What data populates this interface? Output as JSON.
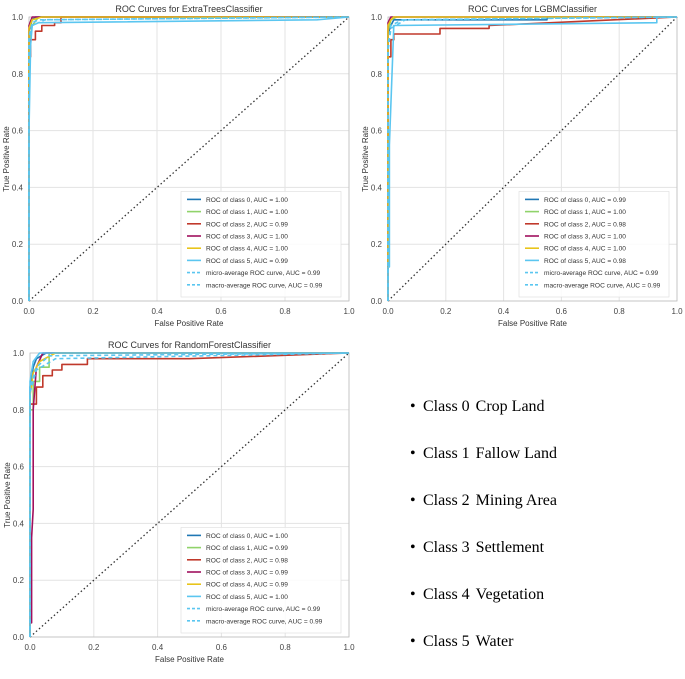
{
  "chart_data": [
    {
      "type": "line",
      "title": "ROC Curves for ExtraTreesClassifier",
      "xlabel": "False Positive Rate",
      "ylabel": "True Positive Rate",
      "xlim": [
        0,
        1
      ],
      "ylim": [
        0,
        1
      ],
      "xticks": [
        "0.0",
        "0.2",
        "0.4",
        "0.6",
        "0.8",
        "1.0"
      ],
      "yticks": [
        "0.0",
        "0.2",
        "0.4",
        "0.6",
        "0.8",
        "1.0"
      ],
      "grid": true,
      "legend_position": "lower-right",
      "series": [
        {
          "name": "ROC of class 0, AUC = 1.00",
          "color": "#1f77b4",
          "dash": false,
          "x": [
            0,
            0,
            0.01,
            0.02,
            1
          ],
          "y": [
            0,
            0.95,
            0.99,
            1.0,
            1.0
          ]
        },
        {
          "name": "ROC of class 1, AUC = 1.00",
          "color": "#90d36a",
          "dash": false,
          "x": [
            0,
            0,
            0.01,
            0.03,
            1
          ],
          "y": [
            0,
            0.9,
            0.97,
            1.0,
            1.0
          ]
        },
        {
          "name": "ROC of class 2, AUC = 0.99",
          "color": "#c0392b",
          "dash": false,
          "x": [
            0,
            0,
            0.005,
            0.005,
            0.02,
            0.02,
            0.04,
            0.04,
            0.08,
            0.08,
            0.1,
            0.1,
            1
          ],
          "y": [
            0,
            0.86,
            0.86,
            0.92,
            0.92,
            0.95,
            0.95,
            0.97,
            0.97,
            0.98,
            0.98,
            1.0,
            1.0
          ]
        },
        {
          "name": "ROC of class 3, AUC = 1.00",
          "color": "#a0105e",
          "dash": false,
          "x": [
            0,
            0,
            0.01,
            1
          ],
          "y": [
            0,
            0.97,
            1.0,
            1.0
          ]
        },
        {
          "name": "ROC of class 4, AUC = 1.00",
          "color": "#e8c41a",
          "dash": false,
          "x": [
            0,
            0,
            0.01,
            0.04,
            1
          ],
          "y": [
            0,
            0.96,
            0.99,
            1.0,
            1.0
          ]
        },
        {
          "name": "ROC of class 5, AUC = 0.99",
          "color": "#5bc6f0",
          "dash": false,
          "x": [
            0,
            0,
            0.005,
            0.01,
            0.03,
            0.9,
            1
          ],
          "y": [
            0,
            0.6,
            0.9,
            0.97,
            0.98,
            0.99,
            1.0
          ]
        },
        {
          "name": "micro-average ROC curve, AUC = 0.99",
          "color": "#5bc6f0",
          "dash": true,
          "x": [
            0,
            0,
            0.01,
            0.03,
            1
          ],
          "y": [
            0,
            0.93,
            0.98,
            0.99,
            1.0
          ]
        },
        {
          "name": "macro-average ROC curve, AUC = 0.99",
          "color": "#5bc6f0",
          "dash": true,
          "x": [
            0,
            0,
            0.01,
            0.05,
            1
          ],
          "y": [
            0,
            0.92,
            0.97,
            0.99,
            1.0
          ]
        }
      ]
    },
    {
      "type": "line",
      "title": "ROC Curves for LGBMClassifier",
      "xlabel": "False Positive Rate",
      "ylabel": "True Positive Rate",
      "xlim": [
        0,
        1
      ],
      "ylim": [
        0,
        1
      ],
      "xticks": [
        "0.0",
        "0.2",
        "0.4",
        "0.6",
        "0.8",
        "1.0"
      ],
      "yticks": [
        "0.0",
        "0.2",
        "0.4",
        "0.6",
        "0.8",
        "1.0"
      ],
      "grid": true,
      "legend_position": "lower-right",
      "series": [
        {
          "name": "ROC of class 0, AUC = 0.99",
          "color": "#1f77b4",
          "dash": false,
          "x": [
            0,
            0,
            0.01,
            0.02,
            0.55,
            0.55,
            1
          ],
          "y": [
            0,
            0.94,
            0.97,
            0.99,
            0.99,
            1.0,
            1.0
          ]
        },
        {
          "name": "ROC of class 1, AUC = 1.00",
          "color": "#90d36a",
          "dash": false,
          "x": [
            0,
            0,
            0.01,
            0.03,
            1
          ],
          "y": [
            0,
            0.95,
            0.99,
            1.0,
            1.0
          ]
        },
        {
          "name": "ROC of class 2, AUC = 0.98",
          "color": "#c0392b",
          "dash": false,
          "x": [
            0,
            0,
            0.01,
            0.01,
            0.02,
            0.02,
            0.18,
            0.18,
            0.35,
            0.35,
            1
          ],
          "y": [
            0,
            0.86,
            0.86,
            0.92,
            0.92,
            0.94,
            0.94,
            0.96,
            0.96,
            0.97,
            1.0
          ]
        },
        {
          "name": "ROC of class 3, AUC = 1.00",
          "color": "#a0105e",
          "dash": false,
          "x": [
            0,
            0,
            0.01,
            1
          ],
          "y": [
            0,
            0.98,
            1.0,
            1.0
          ]
        },
        {
          "name": "ROC of class 4, AUC = 1.00",
          "color": "#e8c41a",
          "dash": false,
          "x": [
            0,
            0,
            0.01,
            0.02,
            1
          ],
          "y": [
            0,
            0.97,
            0.99,
            1.0,
            1.0
          ]
        },
        {
          "name": "ROC of class 5, AUC = 0.98",
          "color": "#5bc6f0",
          "dash": false,
          "x": [
            0,
            0,
            0.005,
            0.005,
            0.02,
            0.93,
            0.93,
            1
          ],
          "y": [
            0,
            0.12,
            0.12,
            0.55,
            0.97,
            0.98,
            1.0,
            1.0
          ]
        },
        {
          "name": "micro-average ROC curve, AUC = 0.99",
          "color": "#5bc6f0",
          "dash": true,
          "x": [
            0,
            0,
            0.01,
            0.05,
            1
          ],
          "y": [
            0,
            0.9,
            0.97,
            0.99,
            1.0
          ]
        },
        {
          "name": "macro-average ROC curve, AUC = 0.99",
          "color": "#5bc6f0",
          "dash": true,
          "x": [
            0,
            0,
            0.01,
            0.06,
            1
          ],
          "y": [
            0,
            0.88,
            0.96,
            0.99,
            1.0
          ]
        }
      ]
    },
    {
      "type": "line",
      "title": "ROC Curves for RandomForestClassifier",
      "xlabel": "False Positive Rate",
      "ylabel": "True Positive Rate",
      "xlim": [
        0,
        1
      ],
      "ylim": [
        0,
        1
      ],
      "xticks": [
        "0.0",
        "0.2",
        "0.4",
        "0.6",
        "0.8",
        "1.0"
      ],
      "yticks": [
        "0.0",
        "0.2",
        "0.4",
        "0.6",
        "0.8",
        "1.0"
      ],
      "grid": true,
      "legend_position": "lower-right",
      "series": [
        {
          "name": "ROC of class 0, AUC = 1.00",
          "color": "#1f77b4",
          "dash": false,
          "x": [
            0,
            0,
            0.01,
            0.02,
            0.05,
            1
          ],
          "y": [
            0,
            0.88,
            0.95,
            0.98,
            1.0,
            1.0
          ]
        },
        {
          "name": "ROC of class 1, AUC = 0.99",
          "color": "#90d36a",
          "dash": false,
          "x": [
            0,
            0,
            0.01,
            0.01,
            0.03,
            0.03,
            0.06,
            0.06,
            1
          ],
          "y": [
            0,
            0.8,
            0.8,
            0.9,
            0.9,
            0.95,
            0.95,
            1.0,
            1.0
          ]
        },
        {
          "name": "ROC of class 2, AUC = 0.98",
          "color": "#c0392b",
          "dash": false,
          "x": [
            0,
            0,
            0.02,
            0.02,
            0.04,
            0.04,
            0.07,
            0.07,
            0.1,
            0.1,
            0.18,
            0.18,
            0.5,
            1
          ],
          "y": [
            0,
            0.82,
            0.82,
            0.88,
            0.88,
            0.92,
            0.92,
            0.94,
            0.94,
            0.96,
            0.96,
            0.98,
            0.98,
            1.0
          ]
        },
        {
          "name": "ROC of class 3, AUC = 0.99",
          "color": "#a0105e",
          "dash": false,
          "x": [
            0,
            0,
            0.005,
            0.005,
            0.01,
            0.01,
            0.02,
            0.04,
            1
          ],
          "y": [
            0,
            0.05,
            0.05,
            0.35,
            0.45,
            0.8,
            0.95,
            1.0,
            1.0
          ]
        },
        {
          "name": "ROC of class 4, AUC = 0.99",
          "color": "#e8c41a",
          "dash": false,
          "x": [
            0,
            0,
            0.01,
            0.03,
            0.08,
            1
          ],
          "y": [
            0,
            0.85,
            0.93,
            0.97,
            1.0,
            1.0
          ]
        },
        {
          "name": "ROC of class 5, AUC = 1.00",
          "color": "#5bc6f0",
          "dash": false,
          "x": [
            0,
            0,
            0.01,
            0.03,
            1
          ],
          "y": [
            0,
            0.9,
            0.97,
            1.0,
            1.0
          ]
        },
        {
          "name": "micro-average ROC curve, AUC = 0.99",
          "color": "#5bc6f0",
          "dash": true,
          "x": [
            0,
            0,
            0.02,
            0.06,
            1
          ],
          "y": [
            0,
            0.88,
            0.95,
            0.99,
            1.0
          ]
        },
        {
          "name": "macro-average ROC curve, AUC = 0.99",
          "color": "#5bc6f0",
          "dash": true,
          "x": [
            0,
            0,
            0.02,
            0.08,
            1
          ],
          "y": [
            0,
            0.86,
            0.94,
            0.98,
            1.0
          ]
        }
      ]
    }
  ],
  "class_legend": [
    {
      "bullet": "•",
      "label": "Class 0",
      "name": "Crop Land"
    },
    {
      "bullet": "•",
      "label": "Class 1",
      "name": "Fallow Land"
    },
    {
      "bullet": "•",
      "label": "Class 2",
      "name": "Mining Area"
    },
    {
      "bullet": "•",
      "label": "Class 3",
      "name": "Settlement"
    },
    {
      "bullet": "•",
      "label": "Class 4",
      "name": "Vegetation"
    },
    {
      "bullet": "•",
      "label": "Class 5",
      "name": "Water"
    }
  ]
}
